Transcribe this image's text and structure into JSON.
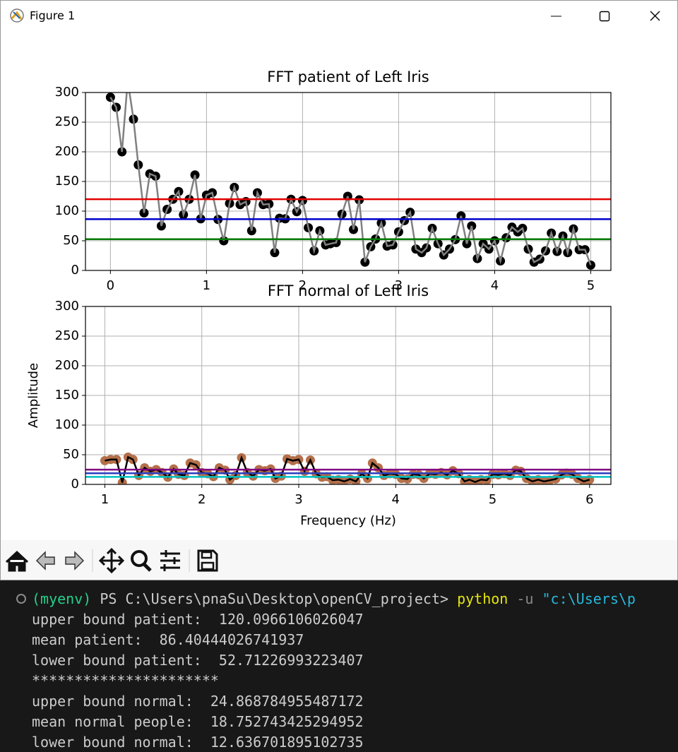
{
  "window": {
    "title": "Figure 1"
  },
  "chart_data": [
    {
      "type": "line",
      "title": "FFT patient of Left Iris",
      "x": [
        0,
        0.06,
        0.12,
        0.18,
        0.24,
        0.29,
        0.35,
        0.41,
        0.47,
        0.53,
        0.59,
        0.65,
        0.71,
        0.76,
        0.82,
        0.88,
        0.94,
        1,
        1.06,
        1.12,
        1.18,
        1.24,
        1.29,
        1.35,
        1.41,
        1.47,
        1.53,
        1.59,
        1.65,
        1.71,
        1.76,
        1.82,
        1.88,
        1.94,
        2,
        2.06,
        2.12,
        2.18,
        2.24,
        2.29,
        2.35,
        2.41,
        2.47,
        2.53,
        2.59,
        2.65,
        2.71,
        2.76,
        2.82,
        2.88,
        2.94,
        3,
        3.06,
        3.12,
        3.18,
        3.24,
        3.29,
        3.35,
        3.41,
        3.47,
        3.53,
        3.59,
        3.65,
        3.71,
        3.76,
        3.82,
        3.88,
        3.94,
        4,
        4.06,
        4.12,
        4.18,
        4.24,
        4.29,
        4.35,
        4.41,
        4.47,
        4.53,
        4.59,
        4.65,
        4.71,
        4.76,
        4.82,
        4.88,
        4.94,
        5
      ],
      "series": [
        {
          "color": "#808080",
          "marker_color": "#000000",
          "values": [
            292,
            275,
            200,
            320,
            255,
            178,
            97,
            163,
            159,
            75,
            103,
            120,
            133,
            94,
            120,
            161,
            87,
            127,
            131,
            86,
            50,
            113,
            140,
            111,
            116,
            67,
            131,
            111,
            112,
            30,
            88,
            87,
            120,
            99,
            118,
            72,
            33,
            67,
            43,
            45,
            47,
            95,
            125,
            69,
            119,
            14,
            40,
            53,
            80,
            41,
            43,
            65,
            84,
            98,
            36,
            30,
            38,
            71,
            45,
            26,
            36,
            52,
            92,
            45,
            75,
            20,
            45,
            36,
            50,
            16,
            55,
            73,
            65,
            71,
            36,
            14,
            19,
            33,
            63,
            32,
            58,
            30,
            70,
            35,
            35,
            9
          ]
        }
      ],
      "hlines": [
        {
          "value": 120.0966106026047,
          "color": "#e00000"
        },
        {
          "value": 86.40444026741937,
          "color": "#0000cc"
        },
        {
          "value": 52.71226993223407,
          "color": "#007a00"
        }
      ],
      "xlim": [
        -0.26,
        5.21
      ],
      "xticks": [
        0,
        1,
        2,
        3,
        4,
        5
      ],
      "ylim": [
        0,
        300
      ],
      "yticks": [
        0,
        50,
        100,
        150,
        200,
        250,
        300
      ],
      "grid": true
    },
    {
      "type": "line",
      "title": "FFT normal of Left Iris",
      "xlabel": "Frequency (Hz)",
      "ylabel": "Amplitude",
      "x": [
        1,
        1.06,
        1.12,
        1.18,
        1.24,
        1.29,
        1.35,
        1.41,
        1.47,
        1.53,
        1.59,
        1.65,
        1.71,
        1.76,
        1.82,
        1.88,
        1.94,
        2,
        2.06,
        2.12,
        2.18,
        2.24,
        2.29,
        2.35,
        2.41,
        2.47,
        2.53,
        2.59,
        2.65,
        2.71,
        2.76,
        2.82,
        2.88,
        2.94,
        3,
        3.06,
        3.12,
        3.18,
        3.24,
        3.29,
        3.35,
        3.41,
        3.47,
        3.53,
        3.59,
        3.65,
        3.71,
        3.76,
        3.82,
        3.88,
        3.94,
        4,
        4.06,
        4.12,
        4.18,
        4.24,
        4.29,
        4.35,
        4.41,
        4.47,
        4.53,
        4.59,
        4.65,
        4.71,
        4.76,
        4.82,
        4.88,
        4.94,
        5,
        5.06,
        5.12,
        5.18,
        5.24,
        5.29,
        5.35,
        5.41,
        5.47,
        5.53,
        5.59,
        5.65,
        5.71,
        5.76,
        5.82,
        5.88,
        5.94,
        6
      ],
      "series": [
        {
          "color": "#000000",
          "marker_color": "#b4704a",
          "values": [
            40,
            42,
            42,
            3,
            46,
            42,
            15,
            28,
            22,
            25,
            20,
            12,
            26,
            17,
            15,
            36,
            33,
            20,
            18,
            13,
            28,
            24,
            8,
            15,
            45,
            20,
            14,
            25,
            23,
            26,
            10,
            14,
            43,
            40,
            42,
            22,
            41,
            18,
            12,
            13,
            7,
            8,
            5,
            9,
            5,
            18,
            10,
            36,
            28,
            15,
            18,
            17,
            10,
            9,
            17,
            16,
            10,
            18,
            17,
            20,
            16,
            23,
            18,
            5,
            8,
            4,
            8,
            7,
            17,
            16,
            18,
            15,
            24,
            22,
            10,
            5,
            8,
            5,
            7,
            9,
            16,
            19,
            17,
            10,
            5,
            8
          ]
        }
      ],
      "hlines": [
        {
          "value": 24.868784955487172,
          "color": "#800080"
        },
        {
          "value": 18.752743425294952,
          "color": "#2b3fbf"
        },
        {
          "value": 12.636701895102735,
          "color": "#00c0c0"
        }
      ],
      "xlim": [
        0.8,
        6.22
      ],
      "xticks": [
        1,
        2,
        3,
        4,
        5,
        6
      ],
      "ylim": [
        0,
        300
      ],
      "yticks": [
        0,
        50,
        100,
        150,
        200,
        250,
        300
      ],
      "grid": true
    }
  ],
  "terminal": {
    "prompt": {
      "env": "(myenv)",
      "path": "PS C:\\Users\\pnaSu\\Desktop\\openCV_project>",
      "command": "python",
      "flag": "-u",
      "argument": "\"c:\\Users\\p"
    },
    "lines": [
      "upper bound patient:  120.0966106026047",
      "mean patient:  86.40444026741937",
      "lower bound patient:  52.71226993223407",
      "**********************",
      "upper bound normal:  24.868784955487172",
      "mean normal people:  18.752743425294952",
      "lower bound normal:  12.636701895102735"
    ]
  }
}
